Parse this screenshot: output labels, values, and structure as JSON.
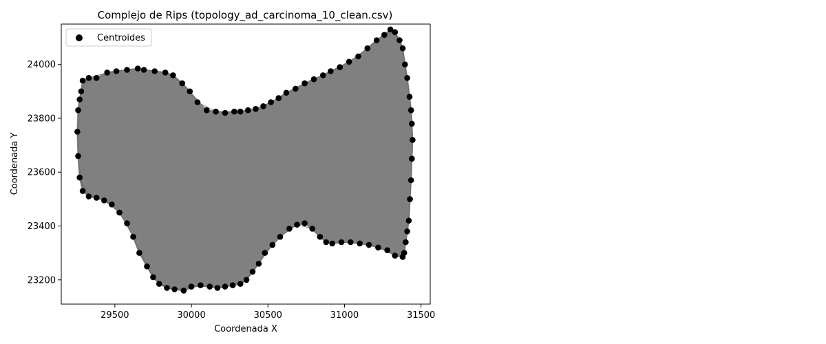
{
  "chart_data": {
    "type": "scatter",
    "title": "Complejo de Rips (topology_ad_carcinoma_10_clean.csv)",
    "xlabel": "Coordenada X",
    "ylabel": "Coordenada Y",
    "xlim": [
      29150,
      31560
    ],
    "ylim": [
      23110,
      24150
    ],
    "xticks": [
      29500,
      30000,
      30500,
      31000,
      31500
    ],
    "yticks": [
      23200,
      23400,
      23600,
      23800,
      24000
    ],
    "legend": {
      "position": "top-left",
      "entries": [
        "Centroides"
      ]
    },
    "grid": false,
    "colors": {
      "points": "#000000",
      "edges": "#808080",
      "axes": "#000000"
    },
    "series": [
      {
        "name": "Centroides",
        "x": [
          29290,
          29330,
          29380,
          29450,
          29510,
          29580,
          29650,
          29690,
          29760,
          29830,
          29880,
          29940,
          29990,
          30040,
          30100,
          30160,
          30220,
          30280,
          30320,
          30370,
          30420,
          30470,
          30520,
          30570,
          30620,
          30680,
          30740,
          30800,
          30860,
          30910,
          30970,
          31030,
          31090,
          31150,
          31210,
          31260,
          31300,
          31330,
          31360,
          31380,
          31395,
          31410,
          31425,
          31435,
          31440,
          31445,
          31440,
          31435,
          31428,
          31420,
          31410,
          31400,
          31390,
          31380,
          31330,
          31280,
          31220,
          31160,
          31100,
          31040,
          30980,
          30920,
          30880,
          30840,
          30790,
          30740,
          30690,
          30640,
          30580,
          30530,
          30480,
          30440,
          30400,
          30360,
          30320,
          30270,
          30220,
          30170,
          30120,
          30060,
          30000,
          29950,
          29890,
          29840,
          29790,
          29750,
          29710,
          29660,
          29620,
          29580,
          29530,
          29480,
          29430,
          29380,
          29330,
          29290,
          29270,
          29260,
          29255,
          29260,
          29270,
          29280
        ],
        "y": [
          23940,
          23950,
          23950,
          23970,
          23975,
          23980,
          23985,
          23980,
          23975,
          23970,
          23960,
          23930,
          23900,
          23860,
          23830,
          23825,
          23820,
          23825,
          23825,
          23830,
          23835,
          23845,
          23860,
          23875,
          23895,
          23910,
          23930,
          23945,
          23960,
          23975,
          23990,
          24010,
          24030,
          24060,
          24090,
          24110,
          24130,
          24120,
          24090,
          24060,
          24000,
          23950,
          23880,
          23830,
          23780,
          23720,
          23650,
          23570,
          23500,
          23420,
          23380,
          23340,
          23300,
          23285,
          23290,
          23310,
          23320,
          23330,
          23335,
          23340,
          23340,
          23335,
          23340,
          23360,
          23390,
          23410,
          23405,
          23390,
          23360,
          23330,
          23300,
          23260,
          23230,
          23200,
          23185,
          23180,
          23175,
          23170,
          23175,
          23180,
          23175,
          23160,
          23165,
          23170,
          23185,
          23210,
          23250,
          23300,
          23360,
          23410,
          23450,
          23480,
          23495,
          23505,
          23510,
          23530,
          23580,
          23660,
          23750,
          23830,
          23870,
          23900
        ]
      }
    ]
  }
}
